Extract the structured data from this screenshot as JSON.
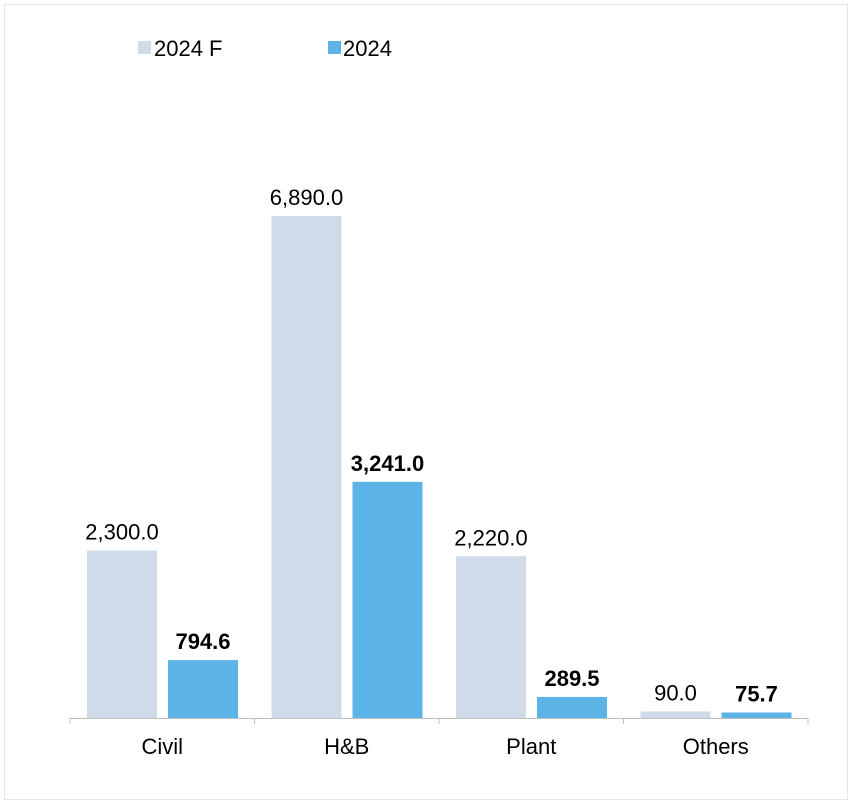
{
  "chart_data": {
    "type": "bar",
    "categories": [
      "Civil",
      "H&B",
      "Plant",
      "Others"
    ],
    "series": [
      {
        "name": "2024 F",
        "values": [
          2300.0,
          6890.0,
          2220.0,
          90.0
        ],
        "labels": [
          "2,300.0",
          "6,890.0",
          "2,220.0",
          "90.0"
        ],
        "color": "#cfdbe8",
        "bold": false
      },
      {
        "name": "2024",
        "values": [
          794.6,
          3241.0,
          289.5,
          75.7
        ],
        "labels": [
          "794.6",
          "3,241.0",
          "289.5",
          "75.7"
        ],
        "color": "#5bb3e6",
        "bold": true
      }
    ],
    "legend_position": "top-left",
    "grid": false,
    "ylim": [
      0,
      6890
    ]
  }
}
